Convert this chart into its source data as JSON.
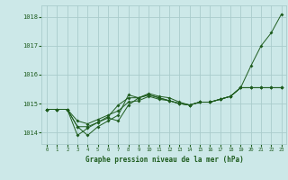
{
  "xlabel": "Graphe pression niveau de la mer (hPa)",
  "ylim": [
    1013.6,
    1018.4
  ],
  "xlim": [
    -0.5,
    23.5
  ],
  "yticks": [
    1014,
    1015,
    1016,
    1017,
    1018
  ],
  "xticks": [
    0,
    1,
    2,
    3,
    4,
    5,
    6,
    7,
    8,
    9,
    10,
    11,
    12,
    13,
    14,
    15,
    16,
    17,
    18,
    19,
    20,
    21,
    22,
    23
  ],
  "bg_color": "#cce8e8",
  "grid_color": "#aacccc",
  "line_color": "#1e5c1e",
  "lines": [
    [
      1014.8,
      1014.8,
      1014.8,
      1014.2,
      1013.9,
      1014.2,
      1014.4,
      1014.6,
      1015.3,
      1015.2,
      1015.35,
      1015.25,
      1015.2,
      1015.05,
      1014.95,
      1015.05,
      1015.05,
      1015.15,
      1015.25,
      1015.55,
      1016.3,
      1017.0,
      1017.45,
      1018.1
    ],
    [
      1014.8,
      1014.8,
      1014.8,
      1013.9,
      1014.15,
      1014.35,
      1014.5,
      1014.4,
      1014.95,
      1015.2,
      1015.3,
      1015.2,
      1015.1,
      1015.0,
      1014.95,
      1015.05,
      1015.05,
      1015.15,
      1015.25,
      1015.55,
      1015.55,
      1015.55,
      1015.55,
      1015.55
    ],
    [
      1014.8,
      1014.8,
      1014.8,
      1014.2,
      1014.2,
      1014.35,
      1014.55,
      1014.95,
      1015.2,
      1015.2,
      1015.3,
      1015.2,
      1015.1,
      1015.0,
      1014.95,
      1015.05,
      1015.05,
      1015.15,
      1015.25,
      1015.55,
      1015.55,
      1015.55,
      1015.55,
      1015.55
    ],
    [
      1014.8,
      1014.8,
      1014.8,
      1014.4,
      1014.3,
      1014.45,
      1014.6,
      1014.75,
      1015.05,
      1015.1,
      1015.25,
      1015.15,
      1015.1,
      1015.0,
      1014.95,
      1015.05,
      1015.05,
      1015.15,
      1015.25,
      1015.55,
      1015.55,
      1015.55,
      1015.55,
      1015.55
    ]
  ]
}
